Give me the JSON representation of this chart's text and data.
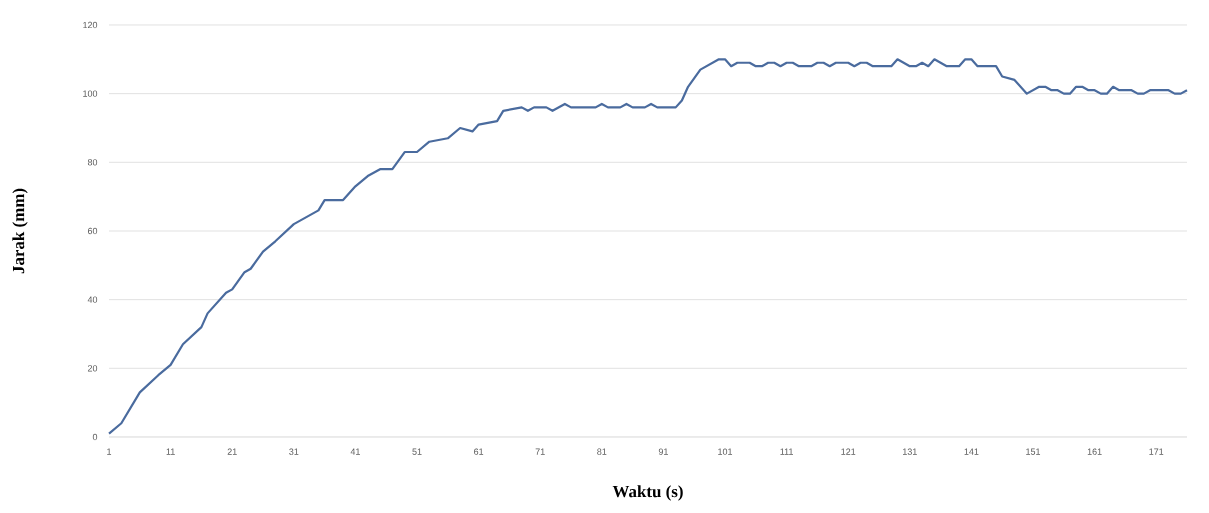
{
  "chart_data": {
    "type": "line",
    "xlabel": "Waktu (s)",
    "ylabel": "Jarak (mm)",
    "color": "#4a6b9e",
    "x": [
      1,
      3,
      6,
      9,
      11,
      13,
      16,
      17,
      20,
      21,
      23,
      24,
      26,
      28,
      31,
      35,
      36,
      39,
      41,
      43,
      45,
      47,
      49,
      51,
      53,
      56,
      58,
      60,
      61,
      64,
      65,
      68,
      69,
      70,
      72,
      73,
      75,
      76,
      80,
      81,
      82,
      84,
      85,
      86,
      88,
      89,
      90,
      93,
      94,
      95,
      97,
      98,
      100,
      101,
      102,
      103,
      105,
      106,
      107,
      108,
      109,
      110,
      111,
      112,
      113,
      115,
      116,
      117,
      118,
      119,
      121,
      122,
      123,
      124,
      125,
      128,
      129,
      131,
      132,
      133,
      134,
      135,
      136,
      137,
      139,
      140,
      141,
      142,
      145,
      146,
      148,
      150,
      151,
      152,
      153,
      154,
      155,
      156,
      157,
      158,
      159,
      160,
      161,
      162,
      163,
      164,
      165,
      167,
      168,
      169,
      170,
      173,
      174,
      175,
      176
    ],
    "values": [
      1,
      4,
      13,
      18,
      21,
      27,
      32,
      36,
      42,
      43,
      48,
      49,
      54,
      57,
      62,
      66,
      69,
      69,
      73,
      76,
      78,
      78,
      83,
      83,
      86,
      87,
      90,
      89,
      91,
      92,
      95,
      96,
      95,
      96,
      96,
      95,
      97,
      96,
      96,
      97,
      96,
      96,
      97,
      96,
      96,
      97,
      96,
      96,
      98,
      102,
      107,
      108,
      110,
      110,
      108,
      109,
      109,
      108,
      108,
      109,
      109,
      108,
      109,
      109,
      108,
      108,
      109,
      109,
      108,
      109,
      109,
      108,
      109,
      109,
      108,
      108,
      110,
      108,
      108,
      109,
      108,
      110,
      109,
      108,
      108,
      110,
      110,
      108,
      108,
      105,
      104,
      100,
      101,
      102,
      102,
      101,
      101,
      100,
      100,
      102,
      102,
      101,
      101,
      100,
      100,
      102,
      101,
      101,
      100,
      100,
      101,
      101,
      100,
      100,
      101
    ],
    "xlim": [
      1,
      176
    ],
    "xticks": [
      1,
      11,
      21,
      31,
      41,
      51,
      61,
      71,
      81,
      91,
      101,
      111,
      121,
      131,
      141,
      151,
      161,
      171
    ],
    "ylim": [
      0,
      120
    ],
    "yticks": [
      0,
      20,
      40,
      60,
      80,
      100,
      120
    ],
    "grid": "y"
  }
}
